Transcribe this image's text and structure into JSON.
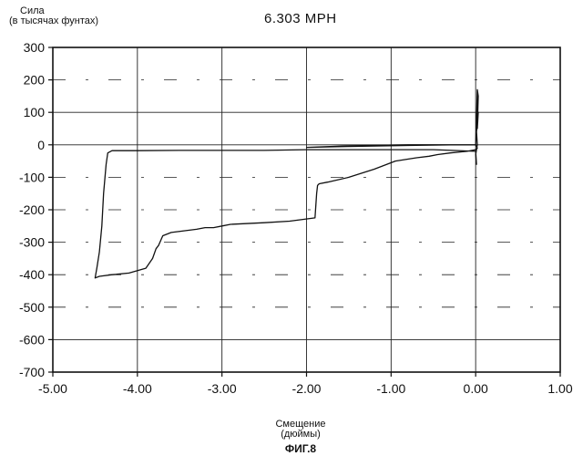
{
  "chart_data": {
    "type": "line",
    "title": "6.303 MPH",
    "ylabel_line1": "Сила",
    "ylabel_line2": "(в тысячах фунтах)",
    "xlabel_line1": "Смещение",
    "xlabel_line2": "(дюймы)",
    "caption": "ФИГ.8",
    "xlim": [
      -5.0,
      1.0
    ],
    "ylim": [
      -700,
      300
    ],
    "xticks": [
      "-5.00",
      "-4.00",
      "-3.00",
      "-2.00",
      "-1.00",
      "0.00",
      "1.00"
    ],
    "yticks": [
      "300",
      "200",
      "100",
      "0",
      "-100",
      "-200",
      "-300",
      "-400",
      "-500",
      "-600",
      "-700"
    ],
    "grid": true,
    "series": [
      {
        "x": [
          0.0,
          0.02,
          0.03,
          0.02,
          0.03,
          0.01,
          0.02,
          0.0,
          0.01,
          0.0,
          -0.5,
          -1.0,
          -1.5,
          -2.0,
          -2.5,
          -3.0,
          -3.5,
          -4.0,
          -4.3,
          -4.35,
          -4.37,
          -4.4,
          -4.42,
          -4.45,
          -4.48,
          -4.5,
          -4.45,
          -4.3,
          -4.1,
          -3.9,
          -3.82,
          -3.78,
          -3.75,
          -3.7,
          -3.6,
          -3.45,
          -3.3,
          -3.2,
          -3.1,
          -3.0,
          -2.9,
          -2.5,
          -2.2,
          -1.9,
          -1.88,
          -1.87,
          -1.85,
          -1.75,
          -1.5,
          -1.2,
          -0.95,
          -0.7,
          -0.55,
          -0.45,
          -0.3,
          -0.1,
          0.0,
          0.02,
          0.01,
          0.0,
          -0.3,
          -0.8,
          -1.5,
          -2.0,
          -1.5,
          -0.8,
          -0.4,
          0.0
        ],
        "y": [
          0,
          170,
          150,
          50,
          100,
          40,
          0,
          -30,
          -60,
          -20,
          -15,
          -15,
          -15,
          -15,
          -17,
          -17,
          -17,
          -18,
          -18,
          -25,
          -60,
          -150,
          -250,
          -330,
          -380,
          -410,
          -405,
          -400,
          -395,
          -380,
          -350,
          -320,
          -310,
          -280,
          -270,
          -265,
          -260,
          -255,
          -255,
          -250,
          -245,
          -240,
          -235,
          -225,
          -150,
          -125,
          -120,
          -115,
          -100,
          -75,
          -50,
          -40,
          -35,
          -30,
          -25,
          -20,
          -15,
          -10,
          -5,
          0,
          0,
          -2,
          -5,
          -8,
          -3,
          0,
          0,
          0
        ]
      }
    ]
  }
}
